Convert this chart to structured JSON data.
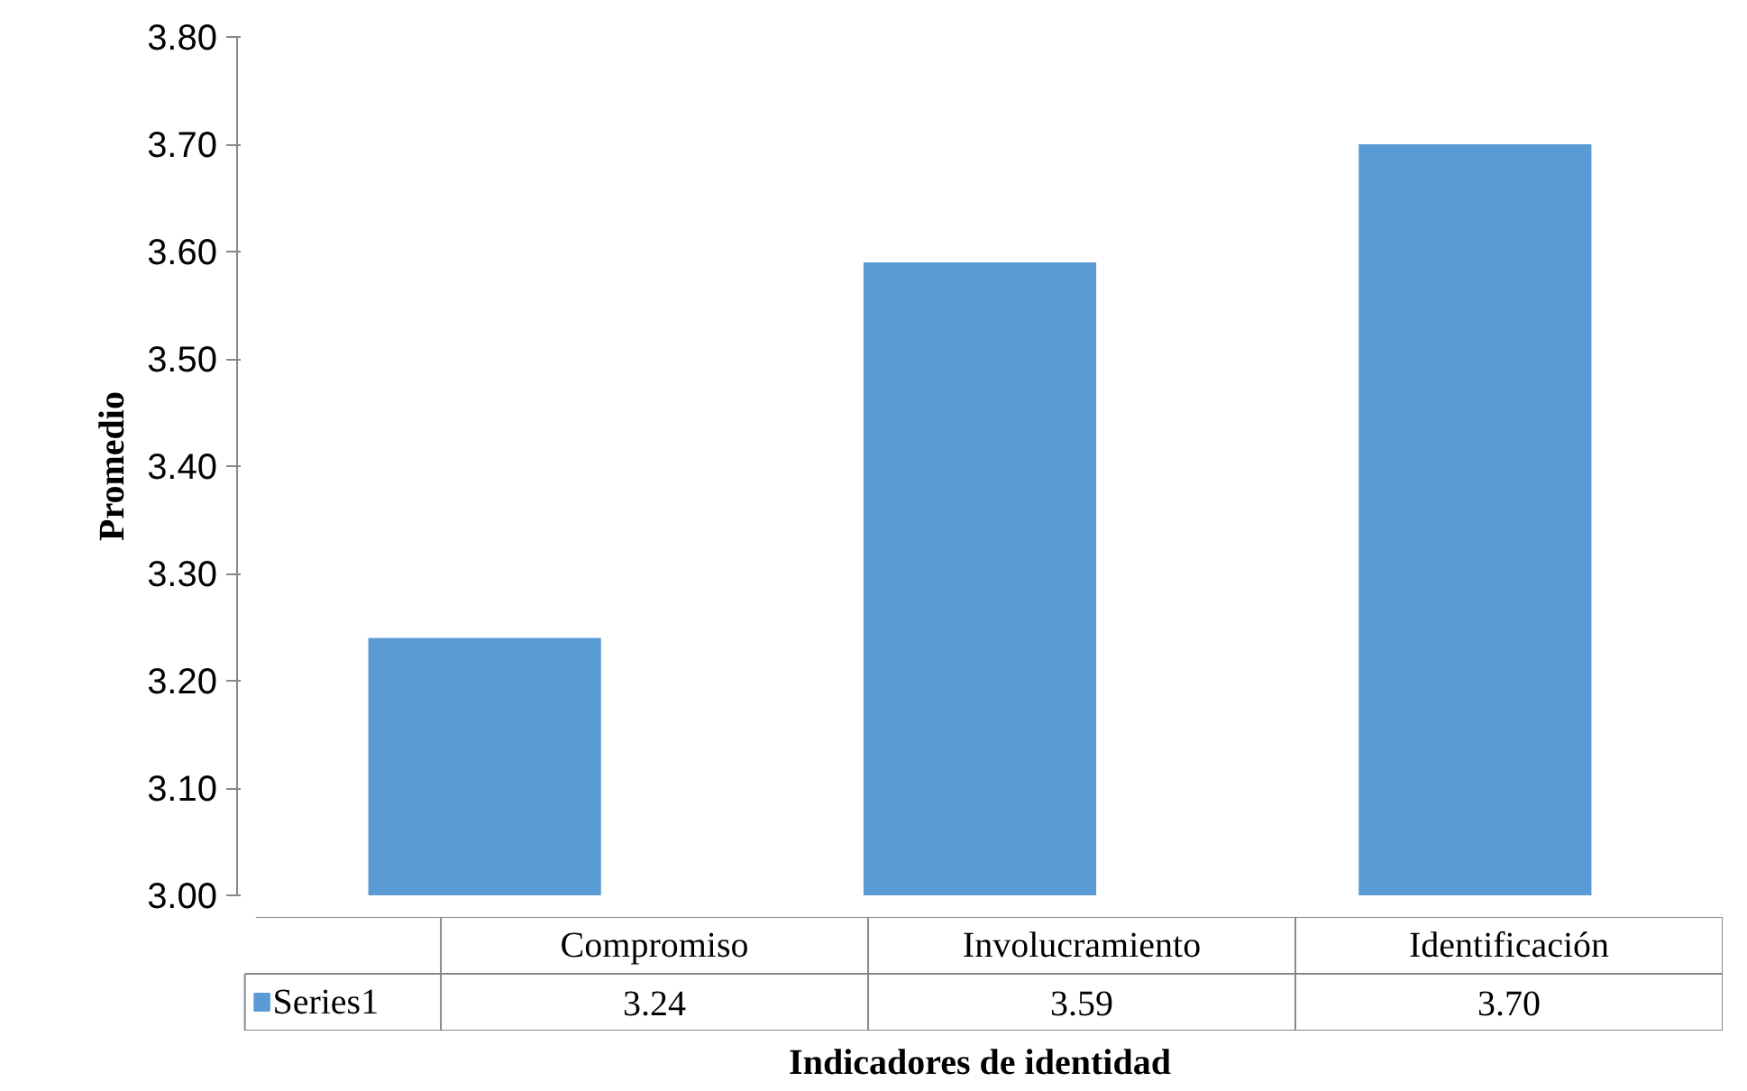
{
  "chart_data": {
    "type": "bar",
    "xlabel": "Indicadores de identidad",
    "ylabel": "Promedio",
    "categories": [
      "Compromiso",
      "Involucramiento",
      "Identificación"
    ],
    "series": [
      {
        "name": "Series1",
        "color": "#5b9bd5",
        "values": [
          3.24,
          3.59,
          3.7
        ],
        "value_labels": [
          "3.24",
          "3.59",
          "3.70"
        ]
      }
    ],
    "ylim": [
      3.0,
      3.8
    ],
    "yticks": [
      {
        "value": 3.0,
        "label": "3.00"
      },
      {
        "value": 3.1,
        "label": "3.10"
      },
      {
        "value": 3.2,
        "label": "3.20"
      },
      {
        "value": 3.3,
        "label": "3.30"
      },
      {
        "value": 3.4,
        "label": "3.40"
      },
      {
        "value": 3.5,
        "label": "3.50"
      },
      {
        "value": 3.6,
        "label": "3.60"
      },
      {
        "value": 3.7,
        "label": "3.70"
      },
      {
        "value": 3.8,
        "label": "3.80"
      }
    ],
    "grid": false,
    "legend": "bottom"
  }
}
